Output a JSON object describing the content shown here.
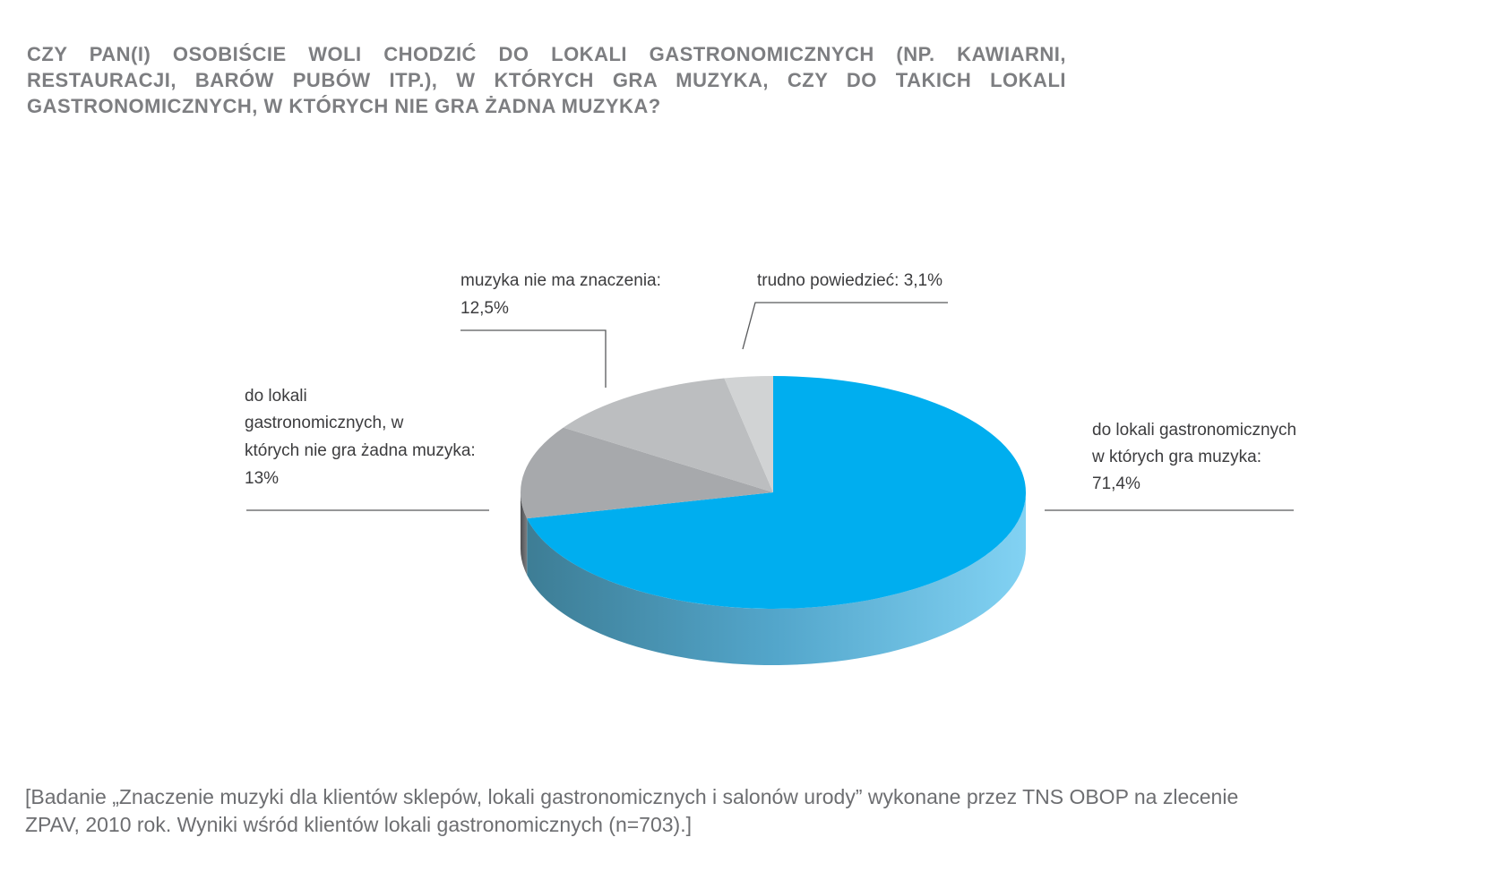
{
  "chart_data": {
    "type": "pie",
    "title_lines": [
      "CZY PAN(I) OSOBIŚCIE WOLI CHODZIĆ DO LOKALI GASTRONOMICZNYCH (NP. KAWIARNI,",
      "RESTAURACJI, BARÓW PUBÓW ITP.), W KTÓRYCH GRA MUZYKA, CZY DO TAKICH LOKALI",
      "GASTRONOMICZNYCH, W KTÓRYCH NIE GRA ŻADNA MUZYKA?"
    ],
    "slices": [
      {
        "label_lines": [
          "do lokali gastronomicznych",
          "w których gra muzyka:",
          "71,4%"
        ],
        "value": 71.4,
        "color": "#00aeef"
      },
      {
        "label_lines": [
          "do lokali",
          "gastronomicznych, w",
          "których nie gra żadna muzyka:",
          "13%"
        ],
        "value": 13,
        "color": "#a7a9ac"
      },
      {
        "label_lines": [
          "muzyka nie ma znaczenia:",
          "12,5%"
        ],
        "value": 12.5,
        "color": "#bcbec0"
      },
      {
        "label_lines": [
          "trudno powiedzieć: 3,1%"
        ],
        "value": 3.1,
        "color": "#d1d3d4"
      }
    ],
    "source_lines": [
      "[Badanie „Znaczenie muzyki dla klientów sklepów, lokali gastronomicznych i salonów urody” wykonane przez TNS OBOP na zlecenie",
      "ZPAV, 2010 rok. Wyniki wśród klientów lokali gastronomicznych (n=703).]"
    ]
  }
}
